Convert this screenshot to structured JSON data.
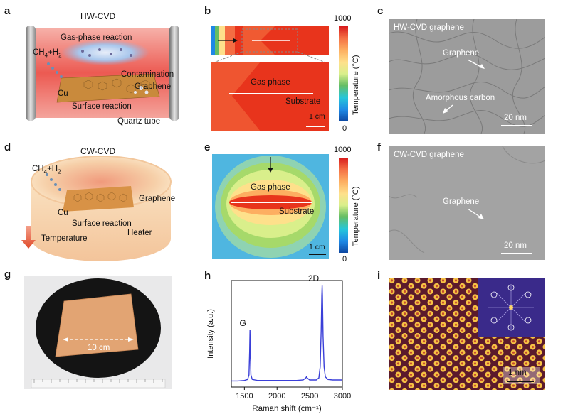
{
  "panels": {
    "a": {
      "letter": "a",
      "title": "HW-CVD",
      "gas_reaction": "Gas-phase reaction",
      "precursor_main": "CH",
      "precursor_sub1": "4",
      "precursor_plus": "+H",
      "precursor_sub2": "2",
      "contamination": "Contamination",
      "graphene": "Graphene",
      "cu": "Cu",
      "surface_reaction": "Surface reaction",
      "quartz_tube": "Quartz tube"
    },
    "b": {
      "letter": "b",
      "gas_phase": "Gas phase",
      "substrate": "Substrate",
      "scale": "1 cm",
      "cbar_max": "1000",
      "cbar_min": "0",
      "cbar_label": "Temperature (°C)"
    },
    "c": {
      "letter": "c",
      "title": "HW-CVD graphene",
      "graphene": "Graphene",
      "amorphous": "Amorphous carbon",
      "scale": "20 nm"
    },
    "d": {
      "letter": "d",
      "title": "CW-CVD",
      "precursor_main": "CH",
      "precursor_sub1": "4",
      "precursor_plus": "+H",
      "precursor_sub2": "2",
      "graphene": "Graphene",
      "cu": "Cu",
      "surface_reaction": "Surface reaction",
      "heater": "Heater",
      "temperature": "Temperature"
    },
    "e": {
      "letter": "e",
      "gas_phase": "Gas phase",
      "substrate": "Substrate",
      "scale": "1 cm",
      "cbar_max": "1000",
      "cbar_min": "0",
      "cbar_label": "Temperature (°C)"
    },
    "f": {
      "letter": "f",
      "title": "CW-CVD graphene",
      "graphene": "Graphene",
      "scale": "20 nm"
    },
    "g": {
      "letter": "g",
      "dimension": "10 cm"
    },
    "h": {
      "letter": "h",
      "peak_g": "G",
      "peak_2d": "2D",
      "xlabel": "Raman shift (cm⁻¹)",
      "ylabel": "Intensity (a.u.)"
    },
    "i": {
      "letter": "i",
      "scale": "1 nm"
    }
  },
  "chart_data": {
    "type": "line",
    "xlabel": "Raman shift (cm⁻¹)",
    "ylabel": "Intensity (a.u.)",
    "xlim": [
      1300,
      3000
    ],
    "ylim": [
      0,
      1.05
    ],
    "xticks": [
      "1500",
      "2000",
      "2500",
      "3000"
    ],
    "annotations": [
      {
        "text": "G",
        "x": 1585
      },
      {
        "text": "2D",
        "x": 2690
      }
    ],
    "series": [
      {
        "color": "#3a3fd8",
        "x": [
          1300,
          1400,
          1500,
          1550,
          1570,
          1580,
          1585,
          1590,
          1600,
          1620,
          1700,
          1900,
          2100,
          2300,
          2400,
          2440,
          2450,
          2460,
          2500,
          2600,
          2640,
          2660,
          2675,
          2685,
          2690,
          2695,
          2705,
          2720,
          2740,
          2780,
          2850,
          3000
        ],
        "y": [
          0.06,
          0.06,
          0.065,
          0.075,
          0.12,
          0.35,
          0.56,
          0.35,
          0.12,
          0.075,
          0.065,
          0.065,
          0.065,
          0.065,
          0.07,
          0.09,
          0.1,
          0.09,
          0.07,
          0.07,
          0.09,
          0.2,
          0.55,
          0.9,
          1.0,
          0.9,
          0.5,
          0.2,
          0.1,
          0.075,
          0.07,
          0.07
        ]
      }
    ]
  }
}
